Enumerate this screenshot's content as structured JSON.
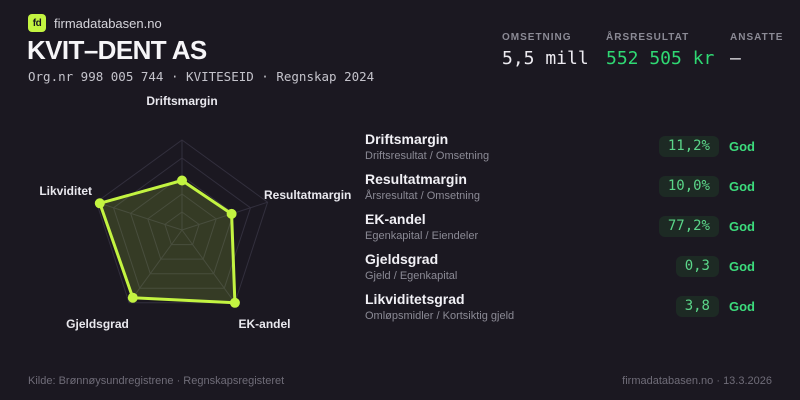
{
  "brand": {
    "logo_text": "fd",
    "site": "firmadatabasen.no"
  },
  "header": {
    "title": "KVIT–DENT AS",
    "subtitle": "Org.nr 998 005 744 · KVITESEID · Regnskap 2024",
    "stats": [
      {
        "label": "OMSETNING",
        "value": "5,5 mill"
      },
      {
        "label": "ÅRSRESULTAT",
        "value": "552 505 kr"
      },
      {
        "label": "ANSATTE",
        "value": "–"
      }
    ]
  },
  "chart_data": {
    "type": "radar",
    "title": "",
    "axes": [
      "Driftsmargin",
      "Resultatmargin",
      "EK-andel",
      "Gjeldsgrad",
      "Likviditet"
    ],
    "values": [
      0.55,
      0.58,
      1.0,
      0.93,
      0.96
    ],
    "max": 1.0,
    "grid_rings": [
      0.2,
      0.4,
      0.6,
      0.8,
      1.0
    ],
    "grid_on": true,
    "legend": "none",
    "stroke_color": "#c3f441",
    "fill_color": "rgba(195,244,65,0.16)",
    "grid_color": "#322f3d",
    "point_radius": 5
  },
  "metrics": [
    {
      "name": "Driftsmargin",
      "formula": "Driftsresultat / Omsetning",
      "value": "11,2%",
      "rating": "God"
    },
    {
      "name": "Resultatmargin",
      "formula": "Årsresultat / Omsetning",
      "value": "10,0%",
      "rating": "God"
    },
    {
      "name": "EK-andel",
      "formula": "Egenkapital / Eiendeler",
      "value": "77,2%",
      "rating": "God"
    },
    {
      "name": "Gjeldsgrad",
      "formula": "Gjeld / Egenkapital",
      "value": "0,3",
      "rating": "God"
    },
    {
      "name": "Likviditetsgrad",
      "formula": "Omløpsmidler / Kortsiktig gjeld",
      "value": "3,8",
      "rating": "God"
    }
  ],
  "footer": {
    "source": "Kilde: Brønnøysundregistrene · Regnskapsregisteret",
    "meta": "firmadatabasen.no · 13.3.2026"
  },
  "colors": {
    "background": "#1b1821",
    "accent_lime": "#c3f441",
    "positive_green": "#2fd873",
    "pill_text_green": "#5bd689",
    "rating_green": "#3cdb7c"
  }
}
